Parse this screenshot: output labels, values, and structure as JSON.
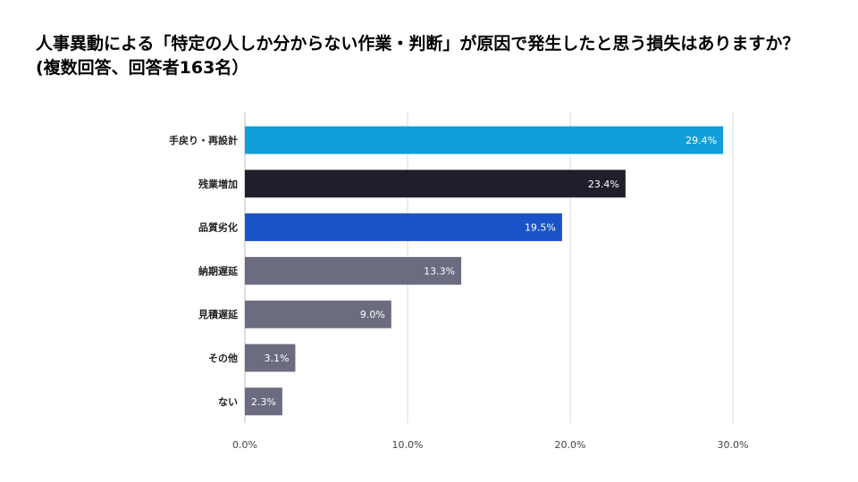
{
  "chart_data": {
    "type": "bar",
    "orientation": "horizontal",
    "title": "人事異動による「特定の人しか分からない作業・判断」が原因で発生したと思う損失はありますか？　(複数回答、回答者163名）",
    "categories": [
      "手戻り・再設計",
      "残業増加",
      "品質劣化",
      "納期遅延",
      "見積遅延",
      "その他",
      "ない"
    ],
    "values": [
      29.4,
      23.4,
      19.5,
      13.3,
      9.0,
      3.1,
      2.3
    ],
    "value_labels": [
      "29.4%",
      "23.4%",
      "19.5%",
      "13.3%",
      "9.0%",
      "3.1%",
      "2.3%"
    ],
    "bar_colors": [
      "#0f9fd8",
      "#1f1f2b",
      "#1953c7",
      "#6c6c80",
      "#6c6c80",
      "#6c6c80",
      "#6c6c80"
    ],
    "xlim": [
      0,
      30
    ],
    "ticks": [
      0,
      10,
      20,
      30
    ],
    "tick_labels": [
      "0.0%",
      "10.0%",
      "20.0%",
      "30.0%"
    ],
    "xlabel": "",
    "ylabel": "",
    "grid": true,
    "legend": "none"
  }
}
